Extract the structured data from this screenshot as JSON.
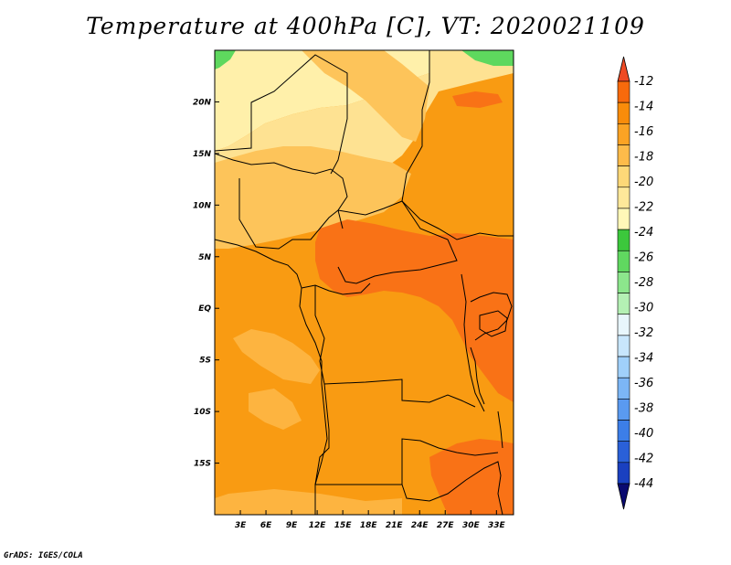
{
  "title": "Temperature at 400hPa [C], VT: 2020021109",
  "credit": "GrADS: IGES/COLA",
  "map": {
    "lon_range": [
      0,
      35
    ],
    "lat_range": [
      -20,
      25
    ],
    "x_ticks": [
      {
        "lon": 3,
        "label": "3E"
      },
      {
        "lon": 6,
        "label": "6E"
      },
      {
        "lon": 9,
        "label": "9E"
      },
      {
        "lon": 12,
        "label": "12E"
      },
      {
        "lon": 15,
        "label": "15E"
      },
      {
        "lon": 18,
        "label": "18E"
      },
      {
        "lon": 21,
        "label": "21E"
      },
      {
        "lon": 24,
        "label": "24E"
      },
      {
        "lon": 27,
        "label": "27E"
      },
      {
        "lon": 30,
        "label": "30E"
      },
      {
        "lon": 33,
        "label": "33E"
      }
    ],
    "y_ticks": [
      {
        "lat": 20,
        "label": "20N"
      },
      {
        "lat": 15,
        "label": "15N"
      },
      {
        "lat": 10,
        "label": "10N"
      },
      {
        "lat": 5,
        "label": "5N"
      },
      {
        "lat": 0,
        "label": "EQ"
      },
      {
        "lat": -5,
        "label": "5S"
      },
      {
        "lat": -10,
        "label": "10S"
      },
      {
        "lat": -15,
        "label": "15S"
      }
    ]
  },
  "colorbar": {
    "colors": [
      "#0a0a70",
      "#1a40c0",
      "#2a60d8",
      "#3c7ee8",
      "#5a9af0",
      "#7cb6f6",
      "#a0d0fa",
      "#c8e6fc",
      "#e8f6fc",
      "#b4f0b4",
      "#8ce68c",
      "#60d860",
      "#3cc83c",
      "#fff8b8",
      "#fee89a",
      "#fdd878",
      "#fdbb4a",
      "#fba324",
      "#f98c0a",
      "#f86a0c",
      "#ef4a24"
    ],
    "labels": [
      "-44",
      "-42",
      "-40",
      "-38",
      "-36",
      "-34",
      "-32",
      "-30",
      "-28",
      "-26",
      "-24",
      "-22",
      "-20",
      "-18",
      "-16",
      "-14",
      "-12"
    ]
  }
}
